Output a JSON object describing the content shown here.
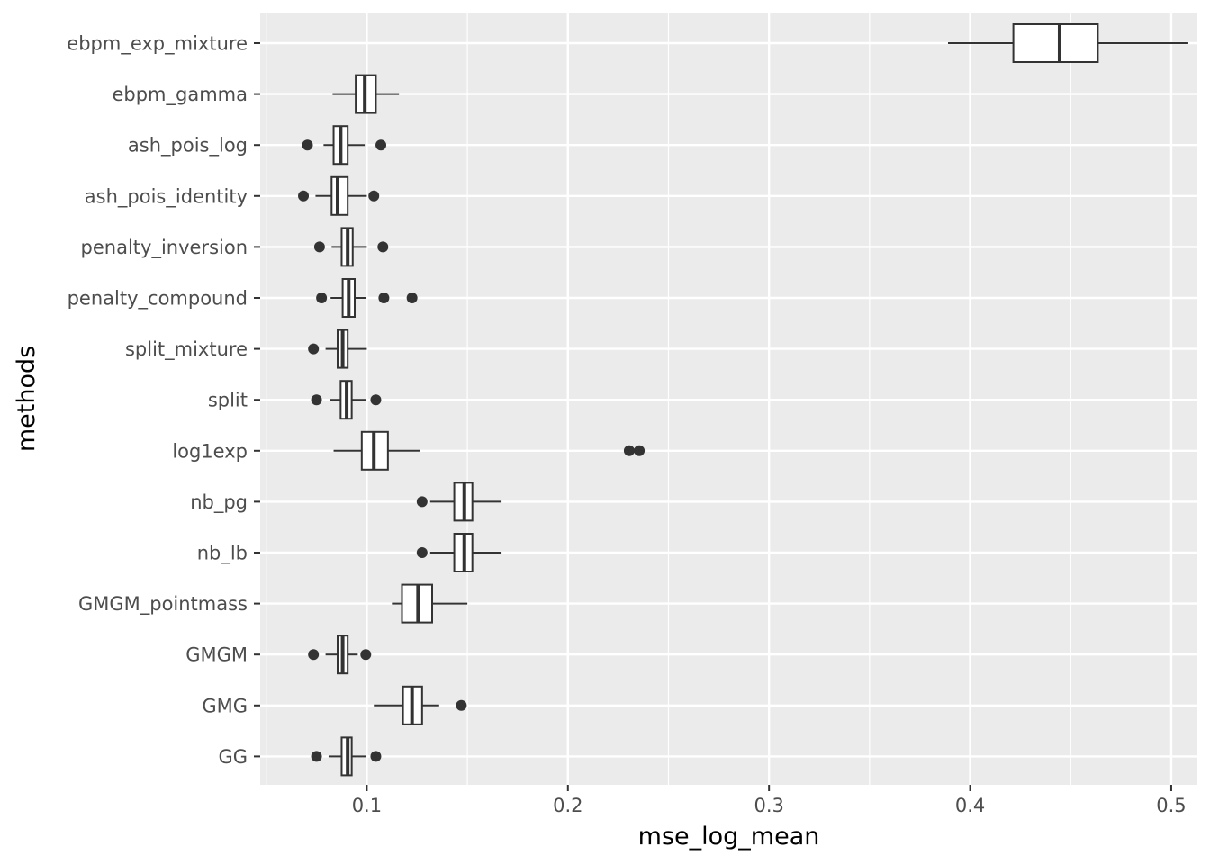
{
  "chart_data": {
    "type": "boxplot",
    "orientation": "horizontal",
    "xlabel": "mse_log_mean",
    "ylabel": "methods",
    "xlim": [
      0.047,
      0.513
    ],
    "x_ticks": [
      0.1,
      0.2,
      0.3,
      0.4,
      0.5
    ],
    "x_tick_labels": [
      "0.1",
      "0.2",
      "0.3",
      "0.4",
      "0.5"
    ],
    "grid": true,
    "legend": "none",
    "colors": {
      "panel_background": "#ebebeb",
      "grid": "#ffffff",
      "box_outline": "#333333",
      "box_fill": "#ffffff",
      "outlier": "#333333",
      "tick_label": "#4d4d4d"
    },
    "categories": [
      "ebpm_exp_mixture",
      "ebpm_gamma",
      "ash_pois_log",
      "ash_pois_identity",
      "penalty_inversion",
      "penalty_compound",
      "split_mixture",
      "split",
      "log1exp",
      "nb_pg",
      "nb_lb",
      "GMGM_pointmass",
      "GMGM",
      "GMG",
      "GG"
    ],
    "boxes": [
      {
        "method": "ebpm_exp_mixture",
        "whisker_low": 0.389,
        "q1": 0.4215,
        "median": 0.4445,
        "q3": 0.4635,
        "whisker_high": 0.5085,
        "outliers": []
      },
      {
        "method": "ebpm_gamma",
        "whisker_low": 0.083,
        "q1": 0.0945,
        "median": 0.099,
        "q3": 0.1045,
        "whisker_high": 0.116,
        "outliers": []
      },
      {
        "method": "ash_pois_log",
        "whisker_low": 0.0785,
        "q1": 0.0835,
        "median": 0.087,
        "q3": 0.0905,
        "whisker_high": 0.099,
        "outliers": [
          0.0705,
          0.107
        ]
      },
      {
        "method": "ash_pois_identity",
        "whisker_low": 0.0745,
        "q1": 0.0825,
        "median": 0.0855,
        "q3": 0.0905,
        "whisker_high": 0.1,
        "outliers": [
          0.0685,
          0.1035
        ]
      },
      {
        "method": "penalty_inversion",
        "whisker_low": 0.0825,
        "q1": 0.0875,
        "median": 0.0905,
        "q3": 0.093,
        "whisker_high": 0.1,
        "outliers": [
          0.0765,
          0.108
        ]
      },
      {
        "method": "penalty_compound",
        "whisker_low": 0.082,
        "q1": 0.088,
        "median": 0.091,
        "q3": 0.094,
        "whisker_high": 0.0995,
        "outliers": [
          0.0775,
          0.1085,
          0.1225
        ]
      },
      {
        "method": "split_mixture",
        "whisker_low": 0.0795,
        "q1": 0.0855,
        "median": 0.088,
        "q3": 0.0905,
        "whisker_high": 0.1,
        "outliers": [
          0.0735
        ]
      },
      {
        "method": "split",
        "whisker_low": 0.0815,
        "q1": 0.087,
        "median": 0.09,
        "q3": 0.0925,
        "whisker_high": 0.0995,
        "outliers": [
          0.075,
          0.1045
        ]
      },
      {
        "method": "log1exp",
        "whisker_low": 0.0835,
        "q1": 0.0975,
        "median": 0.1035,
        "q3": 0.1105,
        "whisker_high": 0.1265,
        "outliers": [
          0.2305,
          0.2355
        ]
      },
      {
        "method": "nb_pg",
        "whisker_low": 0.1315,
        "q1": 0.1435,
        "median": 0.1485,
        "q3": 0.1525,
        "whisker_high": 0.167,
        "outliers": [
          0.1275
        ]
      },
      {
        "method": "nb_lb",
        "whisker_low": 0.1315,
        "q1": 0.1435,
        "median": 0.1485,
        "q3": 0.1525,
        "whisker_high": 0.167,
        "outliers": [
          0.1275
        ]
      },
      {
        "method": "GMGM_pointmass",
        "whisker_low": 0.1125,
        "q1": 0.1175,
        "median": 0.1255,
        "q3": 0.1325,
        "whisker_high": 0.15,
        "outliers": []
      },
      {
        "method": "GMGM",
        "whisker_low": 0.0795,
        "q1": 0.0855,
        "median": 0.088,
        "q3": 0.0905,
        "whisker_high": 0.0955,
        "outliers": [
          0.0735,
          0.0995
        ]
      },
      {
        "method": "GMG",
        "whisker_low": 0.1035,
        "q1": 0.118,
        "median": 0.1225,
        "q3": 0.1275,
        "whisker_high": 0.136,
        "outliers": [
          0.147
        ]
      },
      {
        "method": "GG",
        "whisker_low": 0.081,
        "q1": 0.0875,
        "median": 0.0905,
        "q3": 0.0925,
        "whisker_high": 0.0995,
        "outliers": [
          0.075,
          0.1045
        ]
      }
    ]
  }
}
